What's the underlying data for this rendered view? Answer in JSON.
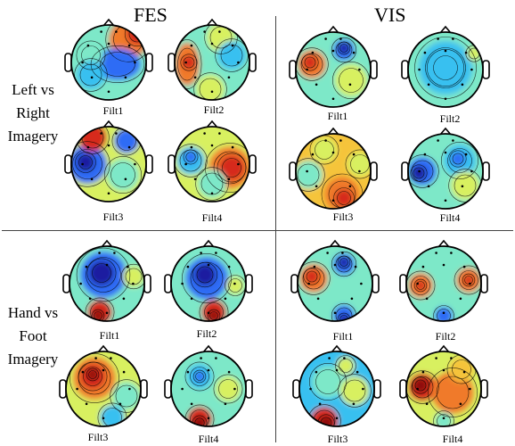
{
  "columns": {
    "left": "FES",
    "right": "VIS"
  },
  "rows": {
    "top": [
      "Left vs",
      "Right",
      "Imagery"
    ],
    "bottom": [
      "Hand vs",
      "Foot",
      "Imagery"
    ]
  },
  "colormap": [
    "#1a1aa0",
    "#2f6cf5",
    "#39c0f0",
    "#7de8c8",
    "#d8f060",
    "#f5c43a",
    "#f07a2a",
    "#d62a1e",
    "#8c0c0c"
  ],
  "panels": {
    "fes_lr": [
      "Filt1",
      "Filt2",
      "Filt3",
      "Filt4"
    ],
    "vis_lr": [
      "Filt1",
      "Filt2",
      "Filt3",
      "Filt4"
    ],
    "fes_hf": [
      "Filt1",
      "Filt2",
      "Filt3",
      "Filt4"
    ],
    "vis_hf": [
      "Filt1",
      "Filt2",
      "Filt3",
      "Filt4"
    ]
  }
}
